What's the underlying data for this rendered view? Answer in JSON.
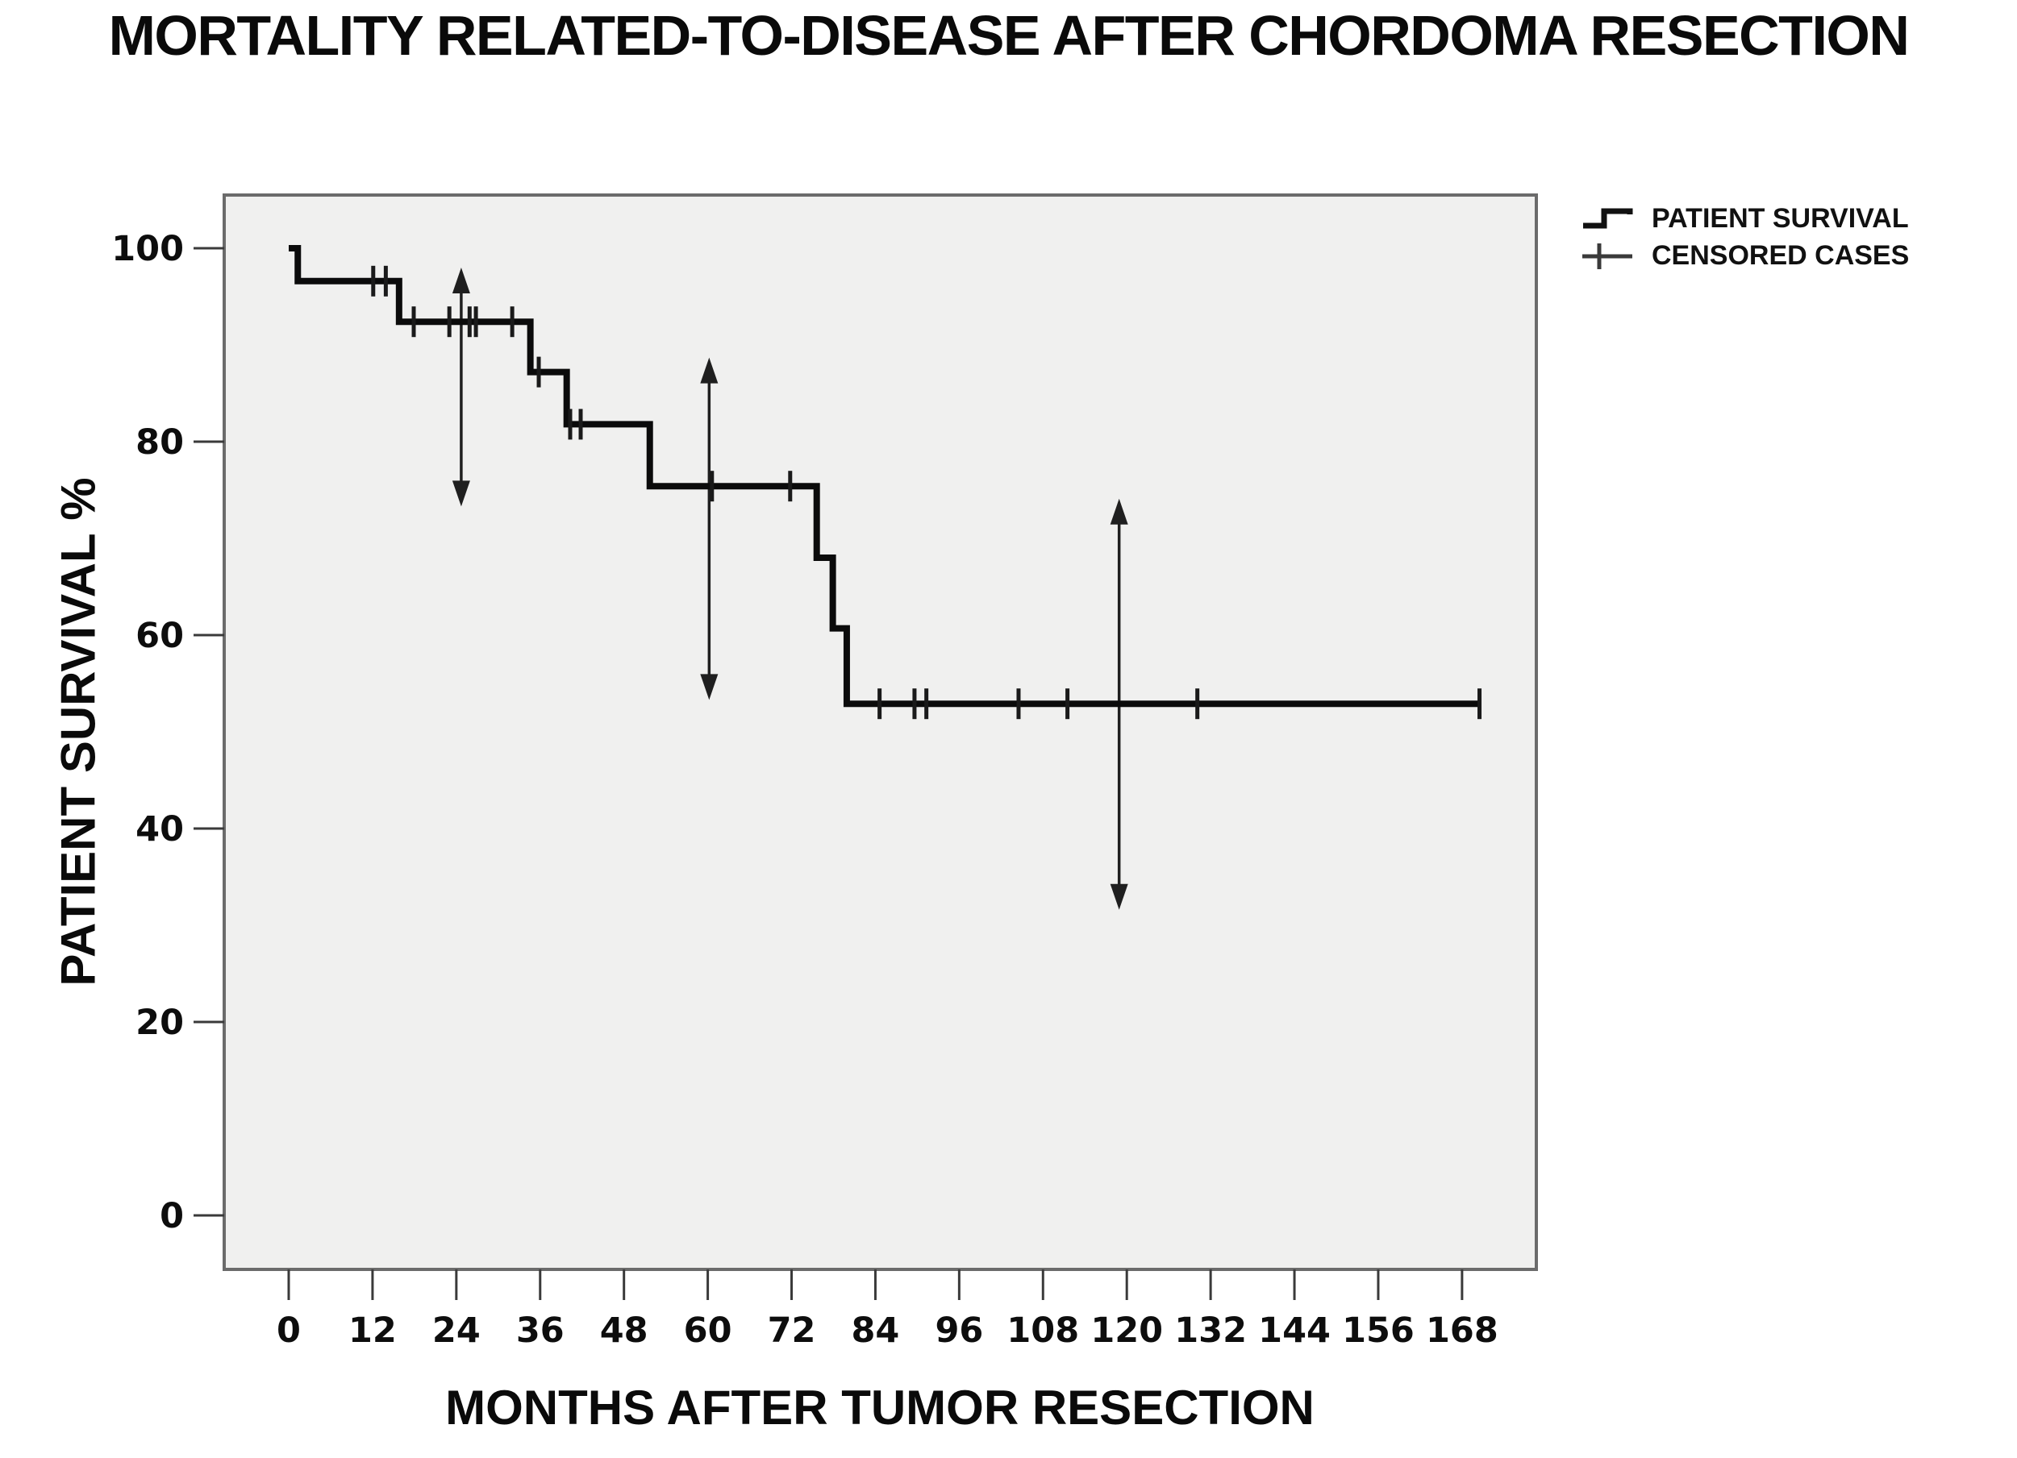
{
  "chart": {
    "title": "MORTALITY RELATED-TO-DISEASE AFTER CHORDOMA RESECTION",
    "x_axis": {
      "label": "MONTHS AFTER TUMOR RESECTION"
    },
    "y_axis": {
      "label": "PATIENT SURVIVAL %"
    },
    "legend": [
      {
        "label": "PATIENT SURVIVAL",
        "marker": "step-line"
      },
      {
        "label": "CENSORED CASES",
        "marker": "plus"
      }
    ]
  },
  "chart_data": {
    "type": "line",
    "subtype": "kaplan-meier-step-function",
    "title": "MORTALITY RELATED-TO-DISEASE AFTER CHORDOMA RESECTION",
    "xlabel": "MONTHS AFTER TUMOR RESECTION",
    "ylabel": "PATIENT SURVIVAL %",
    "xlim": [
      0,
      168
    ],
    "ylim": [
      0,
      100
    ],
    "x_ticks": [
      0,
      12,
      24,
      36,
      48,
      60,
      72,
      84,
      96,
      108,
      120,
      132,
      144,
      156,
      168
    ],
    "y_ticks": [
      100,
      80,
      60,
      40,
      20,
      0
    ],
    "grid": "off",
    "legend_position": "top-right-outside",
    "series": [
      {
        "name": "PATIENT SURVIVAL",
        "steps": [
          {
            "month": 0,
            "survival": 100.0
          },
          {
            "month": 1.3,
            "survival": 96.6
          },
          {
            "month": 15.8,
            "survival": 92.4
          },
          {
            "month": 34.6,
            "survival": 87.2
          },
          {
            "month": 39.8,
            "survival": 81.8
          },
          {
            "month": 51.7,
            "survival": 75.4
          },
          {
            "month": 75.6,
            "survival": 68.0
          },
          {
            "month": 77.9,
            "survival": 60.7
          },
          {
            "month": 79.9,
            "survival": 52.9
          }
        ],
        "end_month": 170.5
      }
    ],
    "censored_cases": [
      [
        12.1,
        96.6
      ],
      [
        13.9,
        96.6
      ],
      [
        17.9,
        92.4
      ],
      [
        23.0,
        92.4
      ],
      [
        25.9,
        92.4
      ],
      [
        26.8,
        92.4
      ],
      [
        32.0,
        92.4
      ],
      [
        35.8,
        87.2
      ],
      [
        40.3,
        81.8
      ],
      [
        41.8,
        81.8
      ],
      [
        60.6,
        75.4
      ],
      [
        71.8,
        75.4
      ],
      [
        84.6,
        52.9
      ],
      [
        89.6,
        52.9
      ],
      [
        91.3,
        52.9
      ],
      [
        104.5,
        52.9
      ],
      [
        111.5,
        52.9
      ],
      [
        130.1,
        52.9
      ],
      [
        170.5,
        52.9
      ]
    ],
    "ci_arrows": [
      {
        "month": 24.7,
        "pct_top": 98.0,
        "pct_bottom": 73.3
      },
      {
        "month": 60.2,
        "pct_top": 88.7,
        "pct_bottom": 53.3
      },
      {
        "month": 118.9,
        "pct_top": 74.1,
        "pct_bottom": 31.6
      }
    ],
    "colors": {
      "curve": "#0b0b0b",
      "censor": "#1a1a1a",
      "arrow": "#1f1f1f",
      "plot_bg": "#f0f0ef",
      "frame": "#6b6b6b",
      "tick": "#3a3a3a",
      "tick_label": "#0d0d0d"
    }
  }
}
